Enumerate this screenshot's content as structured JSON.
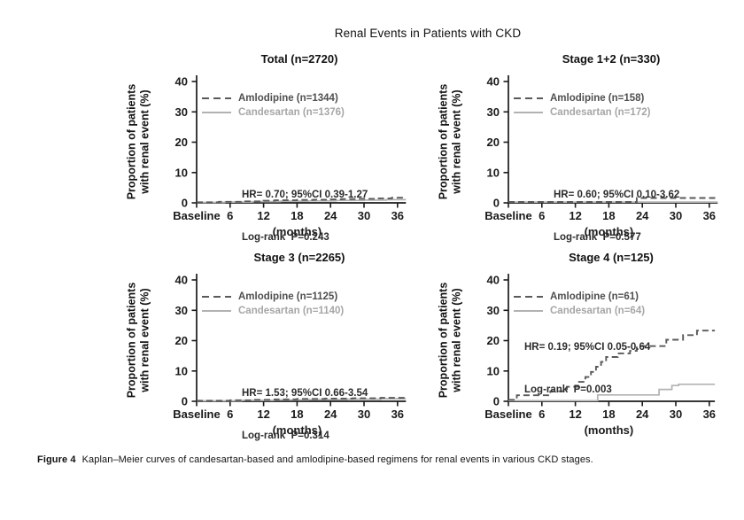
{
  "figure": {
    "title": "Renal Events in Patients with CKD",
    "caption_label": "Figure 4",
    "caption_text": "Kaplan–Meier curves of candesartan-based and amlodipine-based regimens for renal events in various CKD stages."
  },
  "axes": {
    "y_label_line1": "Proportion of patients",
    "y_label_line2": "with renal event (%)",
    "x_axis_label": "(months)",
    "y_ticks": [
      0,
      10,
      20,
      30,
      40
    ],
    "x_ticks": [
      {
        "m": 0,
        "label": "Baseline"
      },
      {
        "m": 6,
        "label": "6"
      },
      {
        "m": 12,
        "label": "12"
      },
      {
        "m": 18,
        "label": "18"
      },
      {
        "m": 24,
        "label": "24"
      },
      {
        "m": 30,
        "label": "30"
      },
      {
        "m": 36,
        "label": "36"
      }
    ]
  },
  "colors": {
    "axis": "#1a1a1a",
    "amlodipine": "#5a5a5a",
    "candesartan": "#b2b2b2",
    "amlodipine_text": "#4f4f4f",
    "candesartan_text": "#a6a6a6"
  },
  "chart_data": [
    {
      "type": "line",
      "subtype": "kaplan-meier-step",
      "title": "Total (n=2720)",
      "xlabel": "(months)",
      "ylabel": "Proportion of patients with renal event (%)",
      "xlim": [
        0,
        37.5
      ],
      "ylim": [
        0,
        40
      ],
      "stats": {
        "line1": "HR= 0.70; 95%CI 0.39-1.27",
        "line2": "Log-rank  P=0.243"
      },
      "series": [
        {
          "name": "Amlodipine (n=1344)",
          "drug": "amlodipine",
          "style": "dashed",
          "end_month": 37.5,
          "points": [
            [
              0,
              0.2
            ],
            [
              4,
              0.35
            ],
            [
              8,
              0.5
            ],
            [
              12,
              0.7
            ],
            [
              14,
              0.85
            ],
            [
              18,
              0.95
            ],
            [
              21,
              1.05
            ],
            [
              24,
              1.15
            ],
            [
              26,
              1.25
            ],
            [
              29,
              1.35
            ],
            [
              32,
              1.5
            ],
            [
              35,
              1.7
            ]
          ]
        },
        {
          "name": "Candesartan (n=1376)",
          "drug": "candesartan",
          "style": "solid",
          "end_month": 37.5,
          "points": [
            [
              0,
              0.15
            ],
            [
              5,
              0.25
            ],
            [
              10,
              0.4
            ],
            [
              15,
              0.55
            ],
            [
              20,
              0.65
            ],
            [
              25,
              0.8
            ],
            [
              30,
              0.9
            ],
            [
              34,
              1.05
            ]
          ]
        }
      ]
    },
    {
      "type": "line",
      "subtype": "kaplan-meier-step",
      "title": "Stage 1+2 (n=330)",
      "xlabel": "(months)",
      "ylabel": "Proportion of patients with renal event (%)",
      "xlim": [
        0,
        37.5
      ],
      "ylim": [
        0,
        40
      ],
      "stats": {
        "line1": "HR= 0.60; 95%CI 0.10-3.62",
        "line2": "Log-rank  P=0.577"
      },
      "series": [
        {
          "name": "Amlodipine (n=158)",
          "drug": "amlodipine",
          "style": "dashed",
          "end_month": 37.5,
          "points": [
            [
              0,
              0.3
            ],
            [
              23,
              1.6
            ]
          ]
        },
        {
          "name": "Candesartan (n=172)",
          "drug": "candesartan",
          "style": "solid",
          "end_month": 37.5,
          "points": [
            [
              0,
              0.25
            ]
          ]
        }
      ]
    },
    {
      "type": "line",
      "subtype": "kaplan-meier-step",
      "title": "Stage 3 (n=2265)",
      "xlabel": "(months)",
      "ylabel": "Proportion of patients with renal event (%)",
      "xlim": [
        0,
        37.5
      ],
      "ylim": [
        0,
        40
      ],
      "stats": {
        "line1": "HR= 1.53; 95%CI 0.66-3.54",
        "line2": "Log-rank  P=0.314"
      },
      "series": [
        {
          "name": "Amlodipine (n=1125)",
          "drug": "amlodipine",
          "style": "dashed",
          "end_month": 37.5,
          "points": [
            [
              0,
              0.2
            ],
            [
              6,
              0.35
            ],
            [
              10,
              0.5
            ],
            [
              14,
              0.65
            ],
            [
              18,
              0.8
            ],
            [
              23,
              0.9
            ],
            [
              28,
              1.0
            ],
            [
              33,
              1.15
            ]
          ]
        },
        {
          "name": "Candesartan (n=1140)",
          "drug": "candesartan",
          "style": "solid",
          "end_month": 37.5,
          "points": [
            [
              0,
              0.15
            ],
            [
              8,
              0.3
            ],
            [
              14,
              0.45
            ],
            [
              20,
              0.55
            ],
            [
              27,
              0.7
            ],
            [
              33,
              0.85
            ]
          ]
        }
      ]
    },
    {
      "type": "line",
      "subtype": "kaplan-meier-step",
      "title": "Stage 4 (n=125)",
      "xlabel": "(months)",
      "ylabel": "Proportion of patients with renal event (%)",
      "xlim": [
        0,
        37
      ],
      "ylim": [
        0,
        40
      ],
      "stats": {
        "line1": "HR= 0.19; 95%CI 0.05-0.64",
        "line2": "Log-rank  P=0.003"
      },
      "series": [
        {
          "name": "Amlodipine (n=61)",
          "drug": "amlodipine",
          "style": "dashed",
          "end_month": 37,
          "points": [
            [
              0,
              0.5
            ],
            [
              1.5,
              2.0
            ],
            [
              7.5,
              3.3
            ],
            [
              10.5,
              4.8
            ],
            [
              12.5,
              6.4
            ],
            [
              13.8,
              8.0
            ],
            [
              14.8,
              9.7
            ],
            [
              15.7,
              11.4
            ],
            [
              16.6,
              13.0
            ],
            [
              17.5,
              14.6
            ],
            [
              19.6,
              15.8
            ],
            [
              21.8,
              16.6
            ],
            [
              23,
              18.2
            ],
            [
              28.3,
              20.3
            ],
            [
              31.3,
              21.8
            ],
            [
              33.8,
              23.3
            ]
          ]
        },
        {
          "name": "Candesartan (n=64)",
          "drug": "candesartan",
          "style": "solid",
          "end_month": 37,
          "points": [
            [
              0,
              0.2
            ],
            [
              16,
              2.1
            ],
            [
              27,
              3.9
            ],
            [
              29.3,
              5.2
            ],
            [
              30.5,
              5.6
            ]
          ]
        }
      ]
    }
  ]
}
